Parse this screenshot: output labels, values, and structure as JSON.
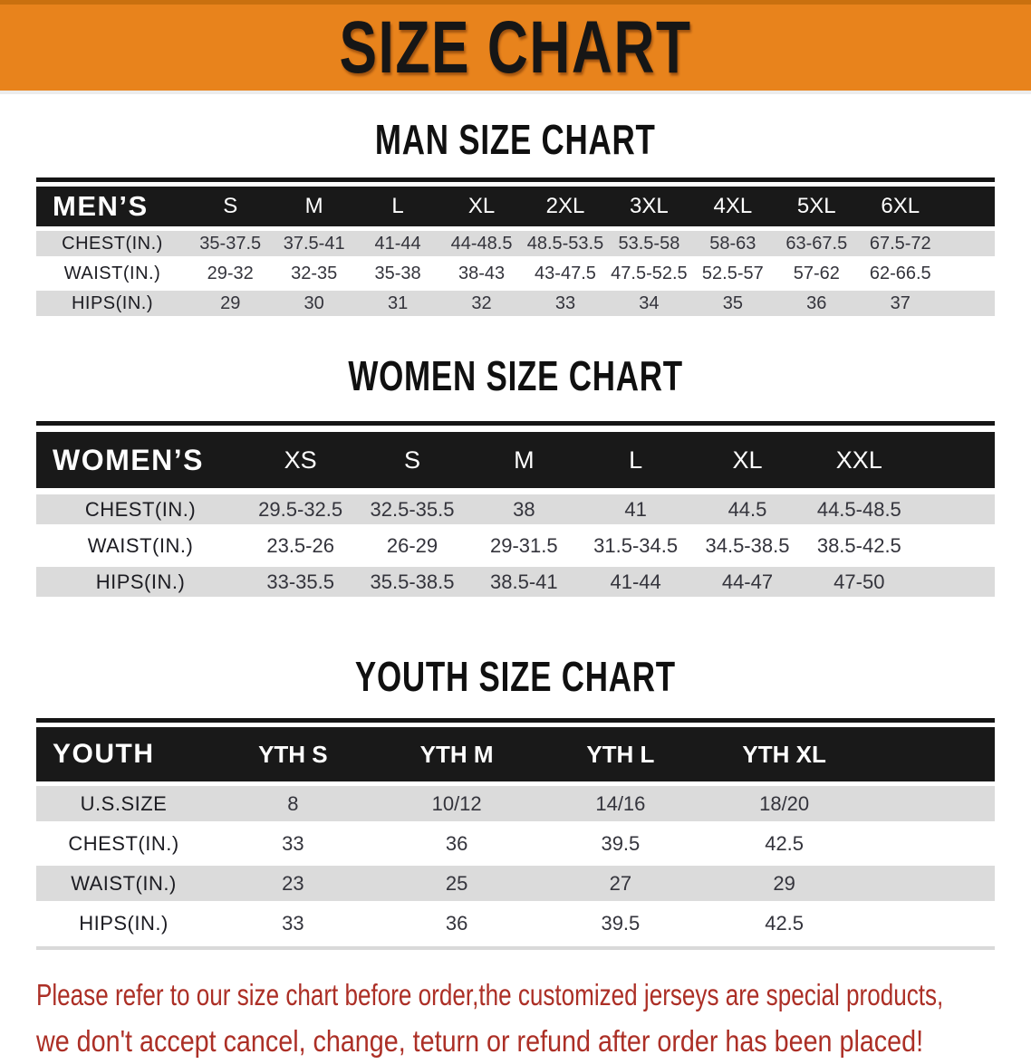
{
  "banner": {
    "title": "SIZE CHART"
  },
  "sections": [
    {
      "id": "men",
      "heading": "MAN SIZE CHART",
      "table": {
        "label": "MEN’S",
        "columns": [
          "S",
          "M",
          "L",
          "XL",
          "2XL",
          "3XL",
          "4XL",
          "5XL",
          "6XL"
        ],
        "rows": [
          {
            "label": "CHEST(IN.)",
            "values": [
              "35-37.5",
              "37.5-41",
              "41-44",
              "44-48.5",
              "48.5-53.5",
              "53.5-58",
              "58-63",
              "63-67.5",
              "67.5-72"
            ]
          },
          {
            "label": "WAIST(IN.)",
            "values": [
              "29-32",
              "32-35",
              "35-38",
              "38-43",
              "43-47.5",
              "47.5-52.5",
              "52.5-57",
              "57-62",
              "62-66.5"
            ]
          },
          {
            "label": "HIPS(IN.)",
            "values": [
              "29",
              "30",
              "31",
              "32",
              "33",
              "34",
              "35",
              "36",
              "37"
            ]
          }
        ]
      }
    },
    {
      "id": "women",
      "heading": "WOMEN SIZE CHART",
      "table": {
        "label": "WOMEN’S",
        "columns": [
          "XS",
          "S",
          "M",
          "L",
          "XL",
          "XXL"
        ],
        "rows": [
          {
            "label": "CHEST(IN.)",
            "values": [
              "29.5-32.5",
              "32.5-35.5",
              "38",
              "41",
              "44.5",
              "44.5-48.5"
            ]
          },
          {
            "label": "WAIST(IN.)",
            "values": [
              "23.5-26",
              "26-29",
              "29-31.5",
              "31.5-34.5",
              "34.5-38.5",
              "38.5-42.5"
            ]
          },
          {
            "label": "HIPS(IN.)",
            "values": [
              "33-35.5",
              "35.5-38.5",
              "38.5-41",
              "41-44",
              "44-47",
              "47-50"
            ]
          }
        ]
      }
    },
    {
      "id": "youth",
      "heading": "YOUTH SIZE CHART",
      "table": {
        "label": "YOUTH",
        "columns": [
          "YTH S",
          "YTH M",
          "YTH L",
          "YTH XL"
        ],
        "rows": [
          {
            "label": "U.S.SIZE",
            "values": [
              "8",
              "10/12",
              "14/16",
              "18/20"
            ]
          },
          {
            "label": "CHEST(IN.)",
            "values": [
              "33",
              "36",
              "39.5",
              "42.5"
            ]
          },
          {
            "label": "WAIST(IN.)",
            "values": [
              "23",
              "25",
              "27",
              "29"
            ]
          },
          {
            "label": "HIPS(IN.)",
            "values": [
              "33",
              "36",
              "39.5",
              "42.5"
            ]
          }
        ]
      }
    }
  ],
  "footer": {
    "notice_line1": "Please refer to our size chart before order,the customized jerseys are special products,",
    "notice_line2": "we don't accept cancel, change, teturn or refund after order has been placed!"
  },
  "colors": {
    "banner_bg": "#E8831C",
    "table_header_bg": "#191919",
    "row_stripe": "#DBDBDB",
    "notice_text": "#AC2F26"
  }
}
